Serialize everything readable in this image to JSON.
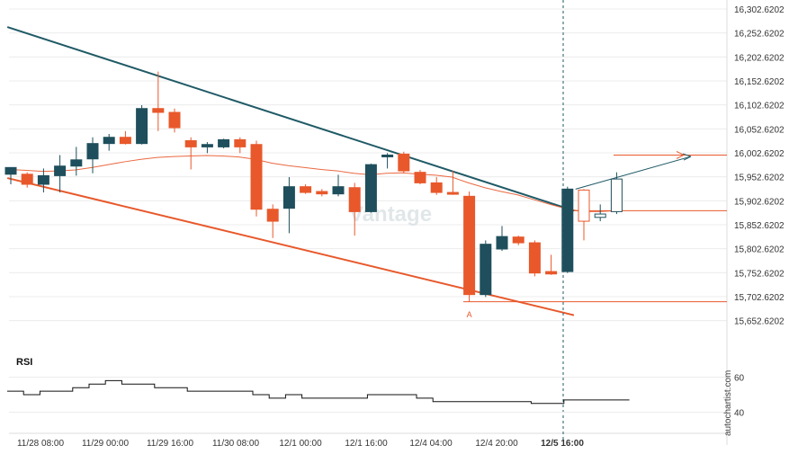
{
  "chart_data": [
    {
      "type": "candlestick",
      "y_axis": {
        "ticks": [
          "16,302.6202",
          "16,252.6202",
          "16,202.6202",
          "16,152.6202",
          "16,102.6202",
          "16,052.6202",
          "16,002.6202",
          "15,952.6202",
          "15,902.6202",
          "15,852.6202",
          "15,802.6202",
          "15,752.6202",
          "15,702.6202",
          "15,652.6202"
        ],
        "ylim": [
          15622,
          16312
        ]
      },
      "x_axis": {
        "ticks": [
          "11/28 08:00",
          "11/29 00:00",
          "11/29 16:00",
          "11/30 08:00",
          "12/1 00:00",
          "12/1 16:00",
          "12/4 04:00",
          "12/4 20:00",
          "12/5 16:00"
        ],
        "highlight_tick": "12/5 16:00"
      },
      "candles": [
        {
          "o": 15958,
          "h": 15972,
          "l": 15937,
          "c": 15972
        },
        {
          "o": 15958,
          "h": 15962,
          "l": 15930,
          "c": 15937
        },
        {
          "o": 15937,
          "h": 15970,
          "l": 15920,
          "c": 15955
        },
        {
          "o": 15955,
          "h": 15998,
          "l": 15920,
          "c": 15975
        },
        {
          "o": 15975,
          "h": 16015,
          "l": 15955,
          "c": 15988
        },
        {
          "o": 15990,
          "h": 16035,
          "l": 15960,
          "c": 16022
        },
        {
          "o": 16022,
          "h": 16042,
          "l": 16007,
          "c": 16035
        },
        {
          "o": 16035,
          "h": 16048,
          "l": 16020,
          "c": 16022
        },
        {
          "o": 16022,
          "h": 16102,
          "l": 16020,
          "c": 16095
        },
        {
          "o": 16095,
          "h": 16172,
          "l": 16048,
          "c": 16087
        },
        {
          "o": 16087,
          "h": 16095,
          "l": 16045,
          "c": 16055
        },
        {
          "o": 16028,
          "h": 16035,
          "l": 15968,
          "c": 16015
        },
        {
          "o": 16015,
          "h": 16025,
          "l": 16002,
          "c": 16020
        },
        {
          "o": 16015,
          "h": 16032,
          "l": 16012,
          "c": 16030
        },
        {
          "o": 16030,
          "h": 16035,
          "l": 16002,
          "c": 16015
        },
        {
          "o": 16020,
          "h": 16028,
          "l": 15870,
          "c": 15885
        },
        {
          "o": 15885,
          "h": 15895,
          "l": 15825,
          "c": 15860
        },
        {
          "o": 15887,
          "h": 15952,
          "l": 15835,
          "c": 15932
        },
        {
          "o": 15932,
          "h": 15937,
          "l": 15917,
          "c": 15920
        },
        {
          "o": 15922,
          "h": 15927,
          "l": 15912,
          "c": 15917
        },
        {
          "o": 15917,
          "h": 15957,
          "l": 15912,
          "c": 15932
        },
        {
          "o": 15930,
          "h": 15940,
          "l": 15830,
          "c": 15880
        },
        {
          "o": 15880,
          "h": 15980,
          "l": 15878,
          "c": 15978
        },
        {
          "o": 15998,
          "h": 16002,
          "l": 15970,
          "c": 15998
        },
        {
          "o": 16000,
          "h": 16005,
          "l": 15960,
          "c": 15965
        },
        {
          "o": 15962,
          "h": 15967,
          "l": 15937,
          "c": 15940
        },
        {
          "o": 15940,
          "h": 15952,
          "l": 15915,
          "c": 15920
        },
        {
          "o": 15920,
          "h": 15965,
          "l": 15915,
          "c": 15917
        },
        {
          "o": 15912,
          "h": 15922,
          "l": 15692,
          "c": 15707
        },
        {
          "o": 15707,
          "h": 15820,
          "l": 15702,
          "c": 15812
        },
        {
          "o": 15802,
          "h": 15850,
          "l": 15798,
          "c": 15828
        },
        {
          "o": 15827,
          "h": 15830,
          "l": 15810,
          "c": 15815
        },
        {
          "o": 15815,
          "h": 15820,
          "l": 15745,
          "c": 15752
        },
        {
          "o": 15755,
          "h": 15790,
          "l": 15748,
          "c": 15750
        },
        {
          "o": 15755,
          "h": 15932,
          "l": 15752,
          "c": 15927
        },
        {
          "o": 15925,
          "h": 15927,
          "l": 15820,
          "c": 15860,
          "hollow": true
        },
        {
          "o": 15868,
          "h": 15895,
          "l": 15860,
          "c": 15875,
          "hollow": true
        },
        {
          "o": 15880,
          "h": 15962,
          "l": 15875,
          "c": 15948,
          "hollow": true
        }
      ],
      "moving_average": [
        15968,
        15966,
        15964,
        15965,
        15967,
        15972,
        15978,
        15984,
        15989,
        15993,
        15995,
        15996,
        15997,
        15996,
        15994,
        15989,
        15981,
        15976,
        15972,
        15968,
        15965,
        15960,
        15957,
        15960,
        15961,
        15958,
        15956,
        15952,
        15940,
        15930,
        15922,
        15915,
        15905,
        15895,
        15886,
        15880,
        15880,
        15882
      ],
      "trendlines": [
        {
          "name": "resistance",
          "color": "#1f5a66",
          "from": {
            "i": -0.1,
            "y": 16265
          },
          "to": {
            "i": 34.5,
            "y": 15882
          }
        },
        {
          "name": "support",
          "color": "#e8582b",
          "from": {
            "i": -0.1,
            "y": 15950
          },
          "to": {
            "i": 34.5,
            "y": 15664
          }
        }
      ],
      "horizontal_levels": [
        {
          "y": 15998,
          "color": "#e8582b",
          "arrow": true
        },
        {
          "y": 15882,
          "color": "#e8582b"
        },
        {
          "y": 15692,
          "color": "#e8582b"
        }
      ],
      "projection": {
        "color": "#1f5a66",
        "from_y": 15927,
        "to_y": 15995
      },
      "point_labels": [
        {
          "text": "A",
          "i": 28
        }
      ],
      "colors": {
        "up": "#1f4f5c",
        "down": "#e8582b",
        "ma": "#e8582b",
        "grid": "#ececec",
        "crosshair": "#1f5a66"
      }
    },
    {
      "type": "line",
      "name": "RSI",
      "title": "RSI",
      "y_ticks": [
        "60",
        "40"
      ],
      "ylim": [
        30,
        70
      ],
      "values": [
        52,
        50,
        52,
        52,
        54,
        56,
        58,
        56,
        56,
        54,
        54,
        52,
        52,
        52,
        52,
        50,
        48,
        50,
        48,
        48,
        48,
        48,
        50,
        50,
        50,
        48,
        46,
        46,
        46,
        46,
        46,
        46,
        45,
        45,
        47,
        47,
        47,
        47
      ],
      "color": "#111111"
    }
  ],
  "watermark": {
    "brand": "Vantage"
  },
  "side_label": "autochartist.com"
}
